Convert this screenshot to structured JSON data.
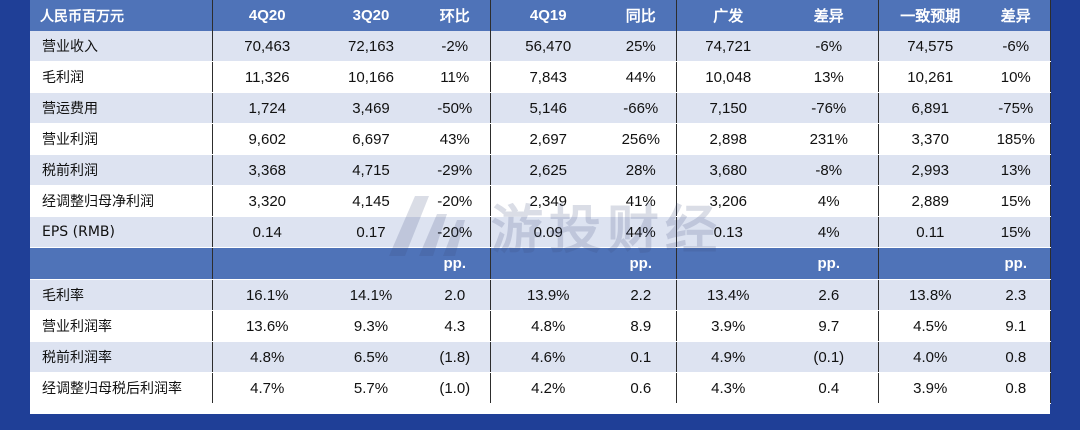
{
  "table": {
    "header": [
      "人民币百万元",
      "4Q20",
      "3Q20",
      "环比",
      "4Q19",
      "同比",
      "广发",
      "差异",
      "一致预期",
      "差异"
    ],
    "rows": [
      [
        "营业收入",
        "70,463",
        "72,163",
        "-2%",
        "56,470",
        "25%",
        "74,721",
        "-6%",
        "74,575",
        "-6%"
      ],
      [
        "毛利润",
        "11,326",
        "10,166",
        "11%",
        "7,843",
        "44%",
        "10,048",
        "13%",
        "10,261",
        "10%"
      ],
      [
        "营运费用",
        "1,724",
        "3,469",
        "-50%",
        "5,146",
        "-66%",
        "7,150",
        "-76%",
        "6,891",
        "-75%"
      ],
      [
        "营业利润",
        "9,602",
        "6,697",
        "43%",
        "2,697",
        "256%",
        "2,898",
        "231%",
        "3,370",
        "185%"
      ],
      [
        "税前利润",
        "3,368",
        "4,715",
        "-29%",
        "2,625",
        "28%",
        "3,680",
        "-8%",
        "2,993",
        "13%"
      ],
      [
        "经调整归母净利润",
        "3,320",
        "4,145",
        "-20%",
        "2,349",
        "41%",
        "3,206",
        "4%",
        "2,889",
        "15%"
      ],
      [
        "EPS (RMB)",
        "0.14",
        "0.17",
        "-20%",
        "0.09",
        "44%",
        "0.13",
        "4%",
        "0.11",
        "15%"
      ]
    ],
    "band": [
      "",
      "",
      "",
      "pp.",
      "",
      "pp.",
      "",
      "pp.",
      "",
      "pp."
    ],
    "ratio_rows": [
      [
        "毛利率",
        "16.1%",
        "14.1%",
        "2.0",
        "13.9%",
        "2.2",
        "13.4%",
        "2.6",
        "13.8%",
        "2.3"
      ],
      [
        "营业利润率",
        "13.6%",
        "9.3%",
        "4.3",
        "4.8%",
        "8.9",
        "3.9%",
        "9.7",
        "4.5%",
        "9.1"
      ],
      [
        "税前利润率",
        "4.8%",
        "6.5%",
        "(1.8)",
        "4.6%",
        "0.1",
        "4.9%",
        "(0.1)",
        "4.0%",
        "0.8"
      ],
      [
        "经调整归母税后利润率",
        "4.7%",
        "5.7%",
        "(1.0)",
        "4.2%",
        "0.6",
        "4.3%",
        "0.4",
        "3.9%",
        "0.8"
      ]
    ]
  },
  "watermark": {
    "text": "游投财经",
    "icon": "m-logo-icon"
  }
}
